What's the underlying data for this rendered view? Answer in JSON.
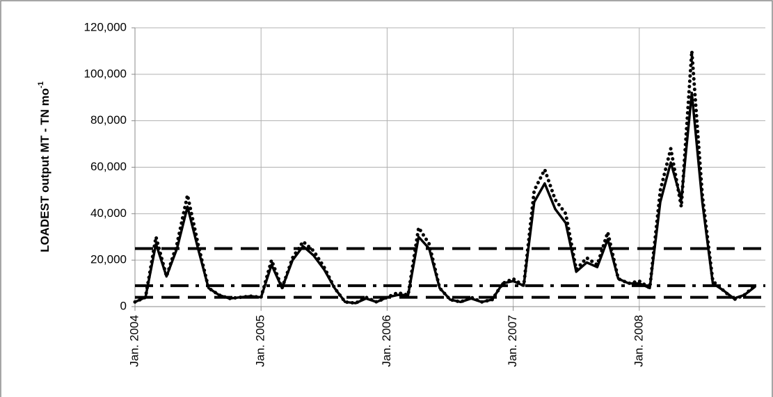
{
  "chart_data": {
    "type": "line",
    "ylabel": "LOADEST output MT - TN mo",
    "ylabel_sup": "-1",
    "categories": [
      "Jan. 2004",
      null,
      null,
      null,
      null,
      null,
      null,
      null,
      null,
      null,
      null,
      null,
      "Jan. 2005",
      null,
      null,
      null,
      null,
      null,
      null,
      null,
      null,
      null,
      null,
      null,
      "Jan. 2006",
      null,
      null,
      null,
      null,
      null,
      null,
      null,
      null,
      null,
      null,
      null,
      "Jan. 2007",
      null,
      null,
      null,
      null,
      null,
      null,
      null,
      null,
      null,
      null,
      null,
      "Jan. 2008",
      null,
      null,
      null,
      null,
      null,
      null,
      null,
      null,
      null,
      null,
      null
    ],
    "series": [
      {
        "color": "#000000",
        "style": "solid",
        "values": [
          2000,
          4000,
          27000,
          13000,
          25000,
          43000,
          25000,
          8000,
          5000,
          3500,
          4000,
          4500,
          4000,
          18000,
          8000,
          20000,
          26000,
          22000,
          16000,
          8000,
          2000,
          1500,
          3500,
          2000,
          4000,
          5000,
          5000,
          30000,
          25000,
          8000,
          3000,
          2000,
          3500,
          2000,
          3000,
          10000,
          11000,
          9000,
          45000,
          53000,
          42000,
          36000,
          15000,
          19000,
          17000,
          29000,
          12000,
          10000,
          10000,
          8000,
          45000,
          62000,
          46000,
          92000,
          45000,
          10000,
          7000,
          3500,
          5000,
          8500
        ]
      },
      {
        "color": "#000000",
        "style": "dotted",
        "values": [
          2000,
          4000,
          30000,
          13000,
          27000,
          48000,
          27000,
          8000,
          5000,
          3500,
          4000,
          4500,
          4000,
          20000,
          8000,
          21000,
          28000,
          24000,
          17000,
          8000,
          2000,
          1500,
          4000,
          2000,
          4000,
          6000,
          5000,
          34000,
          27000,
          8000,
          3000,
          2000,
          4000,
          2000,
          3000,
          10000,
          12000,
          9000,
          50000,
          59000,
          46000,
          40000,
          16000,
          21000,
          18000,
          32000,
          12000,
          10000,
          11000,
          8000,
          50000,
          68000,
          43000,
          110000,
          48000,
          11000,
          7000,
          3000,
          5000,
          9000
        ]
      }
    ],
    "hlines": [
      {
        "value": 25000,
        "style": "dashed"
      },
      {
        "value": 9000,
        "style": "dashdot"
      },
      {
        "value": 4000,
        "style": "dashed"
      }
    ],
    "ylim": [
      0,
      120000
    ],
    "yticks": [
      0,
      {
        "value": 20000,
        "label": "20,000"
      },
      {
        "value": 40000,
        "label": "40,000"
      },
      {
        "value": 60000,
        "label": "60,000"
      },
      {
        "value": 80000,
        "label": "80,000"
      },
      {
        "value": 100000,
        "label": "100,000"
      },
      {
        "value": 120000,
        "label": "120,000"
      }
    ],
    "grid": true
  }
}
